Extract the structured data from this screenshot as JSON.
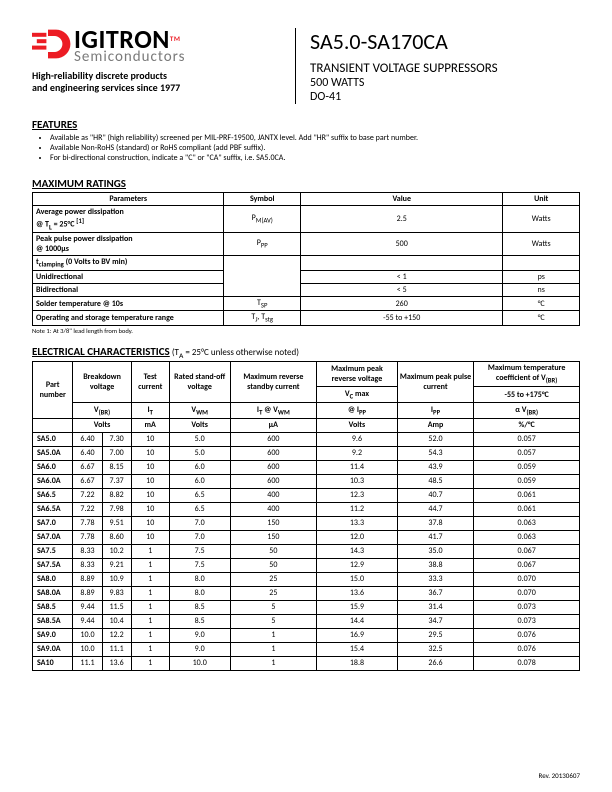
{
  "logo": {
    "name": "IGITRON",
    "sub": "Semiconductors",
    "d_color": "#ec1c24"
  },
  "tagline1": "High-reliability discrete products",
  "tagline2": "and engineering services since 1977",
  "part_title": "SA5.0-SA170CA",
  "subtitle": "TRANSIENT VOLTAGE SUPPRESSORS",
  "watts": "500 WATTS",
  "package": "DO-41",
  "features_h": "FEATURES",
  "features": [
    "Available as \"HR\" (high reliability) screened per MIL-PRF-19500, JANTX level. Add \"HR\" suffix to base part number.",
    "Available Non-RoHS (standard) or RoHS compliant (add PBF suffix).",
    "For bi-directional construction, indicate a \"C\" or \"CA\" suffix, i.e. SA5.0CA."
  ],
  "ratings_h": "MAXIMUM RATINGS",
  "ratings_cols": [
    "Parameters",
    "Symbol",
    "Value",
    "Unit"
  ],
  "ratings": [
    {
      "p1": "Average power dissipation",
      "p2": "@ T<sub>L</sub> = 25°C <sup>[1]</sup>",
      "sym": "P<sub>M(AV)</sub>",
      "val": "2.5",
      "unit": "Watts"
    },
    {
      "p1": "Peak pulse power dissipation",
      "p2": "@ 1000µs",
      "sym": "P<sub>PP</sub>",
      "val": "500",
      "unit": "Watts"
    },
    {
      "p1": "t<sub>clamping</sub> (0 Volts to BV min)",
      "p2a": "Unidirectional",
      "p2b": "Bidirectional",
      "va": "< 1",
      "vb": "< 5",
      "ua": "ps",
      "ub": "ns"
    },
    {
      "p1": "Solder temperature @ 10s",
      "sym": "T<sub>SP</sub>",
      "val": "260",
      "unit": "°C"
    },
    {
      "p1": "Operating and storage temperature range",
      "sym": "T<sub>J</sub>, T<sub>stg</sub>",
      "val": "-55 to +150",
      "unit": "°C"
    }
  ],
  "note1": "Note 1: At 3/8\" lead length from body.",
  "elec_h": "ELECTRICAL CHARACTERISTICS",
  "elec_cond": "(T<sub>A</sub> = 25°C unless otherwise noted)",
  "elec_head": {
    "c0": "Part number",
    "c1": "Breakdown voltage",
    "c2": "Test current",
    "c3": "Rated stand-off voltage",
    "c4": "Maximum reverse standby current",
    "c5": "Maximum peak reverse voltage",
    "c6": "Maximum peak pulse current",
    "c7": "Maximum temperature coefficient of V<sub>(BR)</sub>",
    "r2_5": "V<sub>C</sub> max",
    "r2_7": "-55 to +175°C",
    "r3_1": "V<sub>(BR)</sub>",
    "r3_2": "I<sub>T</sub>",
    "r3_3": "V<sub>WM</sub>",
    "r3_4": "I<sub>T</sub> @ V<sub>WM</sub>",
    "r3_5": "@ I<sub>PP</sub>",
    "r3_6": "I<sub>PP</sub>",
    "r3_7": "α V<sub>(BR)</sub>",
    "r4_1": "Volts",
    "r4_2": "mA",
    "r4_3": "Volts",
    "r4_4": "µA",
    "r4_5": "Volts",
    "r4_6": "Amp",
    "r4_7": "%/°C"
  },
  "elec_rows": [
    [
      "SA5.0",
      "6.40",
      "7.30",
      "10",
      "5.0",
      "600",
      "9.6",
      "52.0",
      "0.057"
    ],
    [
      "SA5.0A",
      "6.40",
      "7.00",
      "10",
      "5.0",
      "600",
      "9.2",
      "54.3",
      "0.057"
    ],
    [
      "SA6.0",
      "6.67",
      "8.15",
      "10",
      "6.0",
      "600",
      "11.4",
      "43.9",
      "0.059"
    ],
    [
      "SA6.0A",
      "6.67",
      "7.37",
      "10",
      "6.0",
      "600",
      "10.3",
      "48.5",
      "0.059"
    ],
    [
      "SA6.5",
      "7.22",
      "8.82",
      "10",
      "6.5",
      "400",
      "12.3",
      "40.7",
      "0.061"
    ],
    [
      "SA6.5A",
      "7.22",
      "7.98",
      "10",
      "6.5",
      "400",
      "11.2",
      "44.7",
      "0.061"
    ],
    [
      "SA7.0",
      "7.78",
      "9.51",
      "10",
      "7.0",
      "150",
      "13.3",
      "37.8",
      "0.063"
    ],
    [
      "SA7.0A",
      "7.78",
      "8.60",
      "10",
      "7.0",
      "150",
      "12.0",
      "41.7",
      "0.063"
    ],
    [
      "SA7.5",
      "8.33",
      "10.2",
      "1",
      "7.5",
      "50",
      "14.3",
      "35.0",
      "0.067"
    ],
    [
      "SA7.5A",
      "8.33",
      "9.21",
      "1",
      "7.5",
      "50",
      "12.9",
      "38.8",
      "0.067"
    ],
    [
      "SA8.0",
      "8.89",
      "10.9",
      "1",
      "8.0",
      "25",
      "15.0",
      "33.3",
      "0.070"
    ],
    [
      "SA8.0A",
      "8.89",
      "9.83",
      "1",
      "8.0",
      "25",
      "13.6",
      "36.7",
      "0.070"
    ],
    [
      "SA8.5",
      "9.44",
      "11.5",
      "1",
      "8.5",
      "5",
      "15.9",
      "31.4",
      "0.073"
    ],
    [
      "SA8.5A",
      "9.44",
      "10.4",
      "1",
      "8.5",
      "5",
      "14.4",
      "34.7",
      "0.073"
    ],
    [
      "SA9.0",
      "10.0",
      "12.2",
      "1",
      "9.0",
      "1",
      "16.9",
      "29.5",
      "0.076"
    ],
    [
      "SA9.0A",
      "10.0",
      "11.1",
      "1",
      "9.0",
      "1",
      "15.4",
      "32.5",
      "0.076"
    ],
    [
      "SA10",
      "11.1",
      "13.6",
      "1",
      "10.0",
      "1",
      "18.8",
      "26.6",
      "0.078"
    ]
  ],
  "rev": "Rev. 20130607"
}
